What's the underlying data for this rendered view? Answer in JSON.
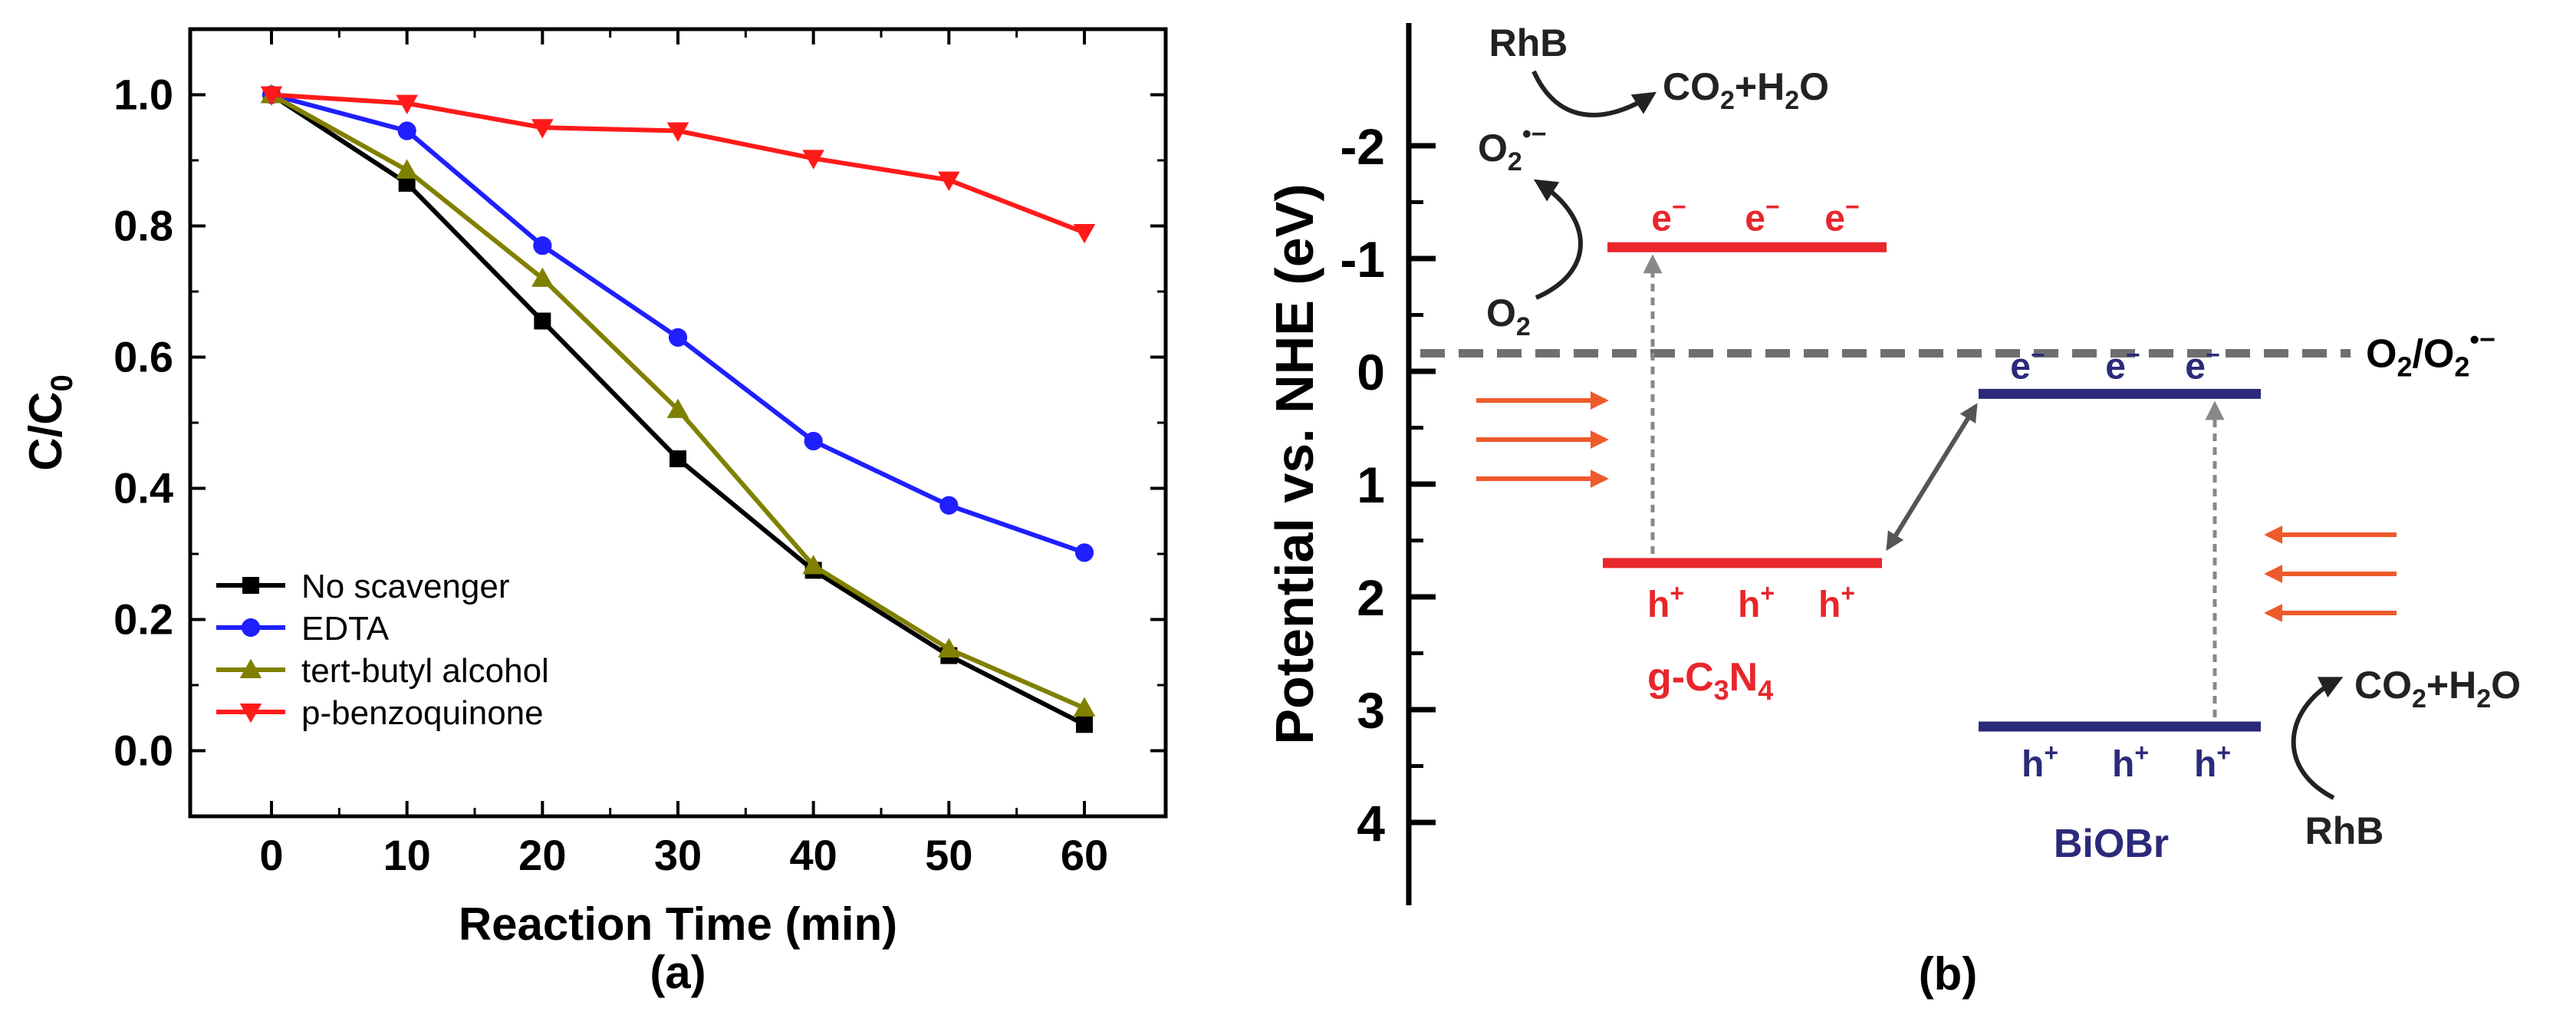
{
  "panel_a": {
    "label": "(a)",
    "ylabel_main": "C/C",
    "ylabel_sub": "0"
  },
  "panel_b": {
    "label": "(b)",
    "axis_label": "Potential vs. NHE (eV)",
    "ticks": [
      "-2",
      "-1",
      "0",
      "1",
      "2",
      "3",
      "4"
    ],
    "couple": {
      "main": "O",
      "sub": "2",
      "slash": "/O",
      "sub2": "2",
      "sup": "•−"
    },
    "gcn": {
      "name_g": "g-C",
      "name_sub3": "3",
      "name_n": "N",
      "name_sub4": "4",
      "cb": -1.1,
      "vb": 1.7,
      "electron": "e",
      "electron_sup": "−",
      "hole": "h",
      "hole_sup": "+"
    },
    "biobr": {
      "name": "BiOBr",
      "cb": 0.2,
      "vb": 3.15,
      "electron": "e",
      "electron_sup": "−",
      "hole": "h",
      "hole_sup": "+"
    },
    "o2_level": -0.16,
    "rhb": "RhB",
    "o2": "O",
    "o2_sub": "2",
    "superoxide": "O",
    "superoxide_sub": "2",
    "superoxide_sup": "•−",
    "product": "CO",
    "product_sub": "2",
    "product_plus": "+H",
    "product_sub2": "2",
    "product_end": "O"
  },
  "chart_data": [
    {
      "type": "line",
      "title": "",
      "xlabel": "Reaction Time (min)",
      "ylabel": "C/C0",
      "x": [
        0,
        10,
        20,
        30,
        40,
        50,
        60
      ],
      "xticks": [
        "0",
        "10",
        "20",
        "30",
        "40",
        "50",
        "60"
      ],
      "yticks": [
        "0.0",
        "0.2",
        "0.4",
        "0.6",
        "0.8",
        "1.0"
      ],
      "xlim": [
        -6,
        66
      ],
      "ylim": [
        -0.1,
        1.1
      ],
      "legend_position": "bottom-left",
      "series": [
        {
          "name": "No scavenger",
          "color": "#000000",
          "marker": "square",
          "values": [
            1.0,
            0.865,
            0.655,
            0.445,
            0.275,
            0.145,
            0.04
          ]
        },
        {
          "name": "EDTA",
          "color": "#1f1fff",
          "marker": "circle",
          "values": [
            1.0,
            0.945,
            0.77,
            0.63,
            0.472,
            0.374,
            0.302
          ]
        },
        {
          "name": "tert-butyl alcohol",
          "color": "#808000",
          "marker": "triangle-up",
          "values": [
            1.0,
            0.885,
            0.72,
            0.52,
            0.282,
            0.155,
            0.065
          ]
        },
        {
          "name": "p-benzoquinone",
          "color": "#ff1a1a",
          "marker": "triangle-down",
          "values": [
            1.0,
            0.987,
            0.95,
            0.945,
            0.903,
            0.87,
            0.79
          ]
        }
      ]
    },
    {
      "type": "diagram",
      "title": "",
      "ylabel": "Potential vs. NHE (eV)",
      "yticks": [
        -2,
        -1,
        0,
        1,
        2,
        3,
        4
      ],
      "reversed_axis": true,
      "levels": [
        {
          "name": "g-C3N4 CB",
          "value": -1.1
        },
        {
          "name": "g-C3N4 VB",
          "value": 1.7
        },
        {
          "name": "BiOBr CB",
          "value": 0.2
        },
        {
          "name": "BiOBr VB",
          "value": 3.15
        },
        {
          "name": "O2/O2•− potential",
          "value": -0.16
        }
      ]
    }
  ]
}
